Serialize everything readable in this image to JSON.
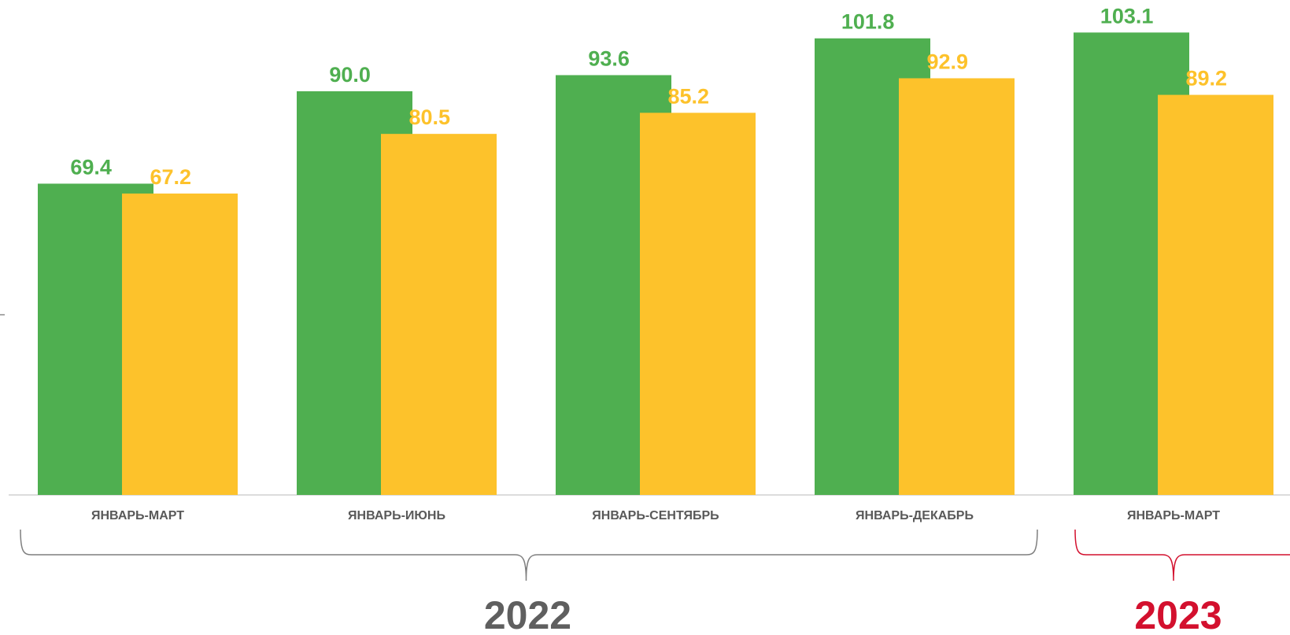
{
  "chart_data": {
    "type": "bar",
    "categories": [
      "ЯНВАРЬ-МАРТ",
      "ЯНВАРЬ-ИЮНЬ",
      "ЯНВАРЬ-СЕНТЯБРЬ",
      "ЯНВАРЬ-ДЕКАБРЬ",
      "ЯНВАРЬ-МАРТ"
    ],
    "series": [
      {
        "values": [
          69.4,
          90.0,
          93.6,
          101.8,
          103.1
        ],
        "value_labels": [
          "69.4",
          "90.0",
          "93.6",
          "101.8",
          "103.1"
        ],
        "color": "#4faf50"
      },
      {
        "values": [
          67.2,
          80.5,
          85.2,
          92.9,
          89.2
        ],
        "value_labels": [
          "67.2",
          "80.5",
          "85.2",
          "92.9",
          "89.2"
        ],
        "color": "#fdc22b"
      }
    ],
    "ylim": [
      0,
      120
    ],
    "grid": false,
    "legend": "none",
    "groups": [
      {
        "label": "2022",
        "color": "#5f5f5f",
        "bracket_color": "#7f7f7f",
        "from": 0,
        "to": 3
      },
      {
        "label": "2023",
        "color": "#d3102e",
        "bracket_color": "#d3102e",
        "from": 4,
        "to": 4
      }
    ]
  }
}
